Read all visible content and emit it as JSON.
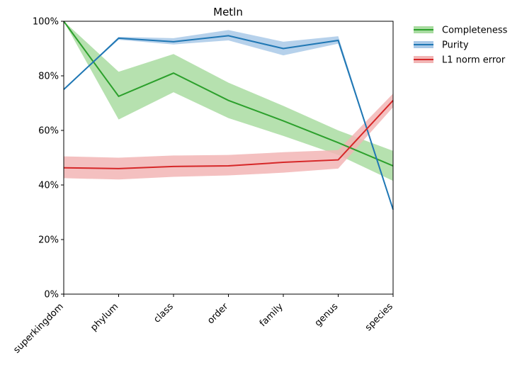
{
  "chart_data": {
    "type": "line",
    "title": "Metln",
    "xlabel": "",
    "ylabel": "",
    "categories": [
      "superkingdom",
      "phylum",
      "class",
      "order",
      "family",
      "genus",
      "species"
    ],
    "ylim": [
      0,
      100
    ],
    "yticks": [
      0,
      20,
      40,
      60,
      80,
      100
    ],
    "ytick_labels": [
      "0%",
      "20%",
      "40%",
      "60%",
      "80%",
      "100%"
    ],
    "grid": false,
    "legend_position": "outside-top-right",
    "series": [
      {
        "name": "Completeness",
        "color": "#2ca02c",
        "band_color": "#a9dca1",
        "values": [
          100,
          72.5,
          81,
          71,
          63.5,
          55.5,
          47
        ],
        "lower": [
          100,
          64,
          74,
          64.5,
          58,
          51,
          41.5
        ],
        "upper": [
          100,
          81.5,
          88,
          77.5,
          69,
          60,
          52.5
        ]
      },
      {
        "name": "Purity",
        "color": "#1f77b4",
        "band_color": "#a9c9e7",
        "values": [
          75,
          93.8,
          92.5,
          94.7,
          90,
          93,
          31
        ],
        "lower": [
          75,
          93.2,
          91.5,
          93,
          87.5,
          91.8,
          31
        ],
        "upper": [
          75,
          94.3,
          93.8,
          96.8,
          92.5,
          94.5,
          31
        ]
      },
      {
        "name": "L1 norm error",
        "color": "#d62728",
        "band_color": "#f2b5b5",
        "values": [
          46.3,
          46,
          46.8,
          47,
          48.3,
          49.2,
          71
        ],
        "lower": [
          42.5,
          42,
          43,
          43.5,
          44.5,
          46,
          68.5
        ],
        "upper": [
          50.5,
          50,
          50.8,
          51,
          52,
          52.8,
          73.5
        ]
      }
    ]
  }
}
